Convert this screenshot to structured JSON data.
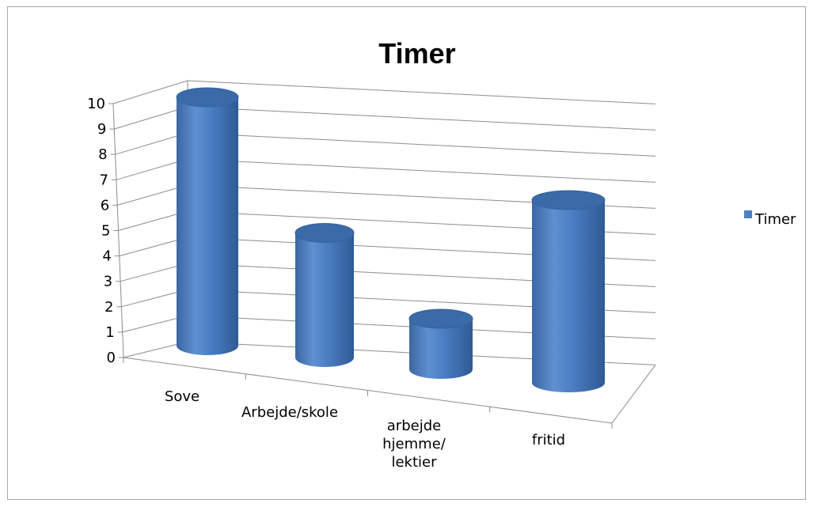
{
  "chart_data": {
    "type": "bar",
    "style": "3d-cylinder",
    "title": "Timer",
    "categories": [
      "Sove",
      "Arbejde/skole",
      "arbejde hjemme/ lektier",
      "fritid"
    ],
    "category_lines": [
      [
        "Sove"
      ],
      [
        "Arbejde/skole"
      ],
      [
        "arbejde",
        "hjemme/",
        "lektier"
      ],
      [
        "fritid"
      ]
    ],
    "series": [
      {
        "name": "Timer",
        "values": [
          10,
          5,
          2,
          7
        ],
        "color": "#4f81bd"
      }
    ],
    "y_ticks": [
      "0",
      "1",
      "2",
      "3",
      "4",
      "5",
      "6",
      "7",
      "8",
      "9",
      "10"
    ],
    "ylim": [
      0,
      10
    ],
    "grid": true,
    "legend_position": "right"
  }
}
